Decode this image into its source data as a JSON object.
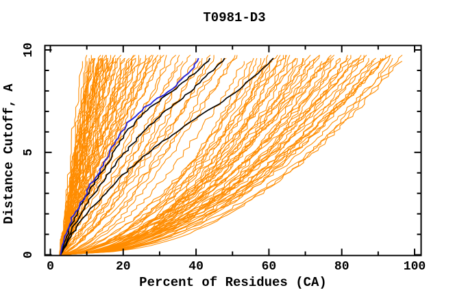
{
  "title": "T0981-D3",
  "chart_data": {
    "type": "line",
    "title": "T0981-D3",
    "xlabel": "Percent of Residues (CA)",
    "ylabel": "Distance Cutoff, A",
    "xlim": [
      0,
      100
    ],
    "ylim": [
      0,
      10
    ],
    "grid": false,
    "legend": "none",
    "x_major_ticks": [
      0,
      20,
      40,
      60,
      80,
      100
    ],
    "x_minor_ticks": [
      10,
      30,
      50,
      70,
      90
    ],
    "x_tick_labels": [
      "0",
      "20",
      "40",
      "60",
      "80",
      "100"
    ],
    "y_major_ticks": [
      0,
      5,
      10
    ],
    "y_minor_ticks": [
      1,
      2,
      3,
      4,
      6,
      7,
      8,
      9
    ],
    "y_tick_labels": [
      "0",
      "5",
      "10"
    ],
    "colors": {
      "models": "#ff8c00",
      "highlight": "#000000",
      "reference": "#2222dd",
      "axis": "#000000"
    },
    "start_percent": 2.8,
    "cutoff_max": 9.7,
    "series": {
      "blue_reference": {
        "color": "#2222dd",
        "points": [
          [
            0,
            2.8
          ],
          [
            0.5,
            3.4
          ],
          [
            1,
            4.2
          ],
          [
            1.5,
            5.2
          ],
          [
            2,
            6.5
          ],
          [
            2.5,
            8.4
          ],
          [
            3,
            9.8
          ],
          [
            3.5,
            11.3
          ],
          [
            4,
            13.3
          ],
          [
            4.5,
            15
          ],
          [
            5,
            16.4
          ],
          [
            5.5,
            17.8
          ],
          [
            6,
            19.5
          ],
          [
            6.5,
            21.5
          ],
          [
            7,
            24.5
          ],
          [
            7.5,
            28.2
          ],
          [
            8,
            32.8
          ],
          [
            8.5,
            35.8
          ],
          [
            9,
            38.6
          ],
          [
            9.7,
            41.3
          ]
        ]
      },
      "black_highlights": [
        {
          "points": [
            [
              0,
              2.8
            ],
            [
              1,
              4.6
            ],
            [
              2,
              7.2
            ],
            [
              3,
              10.4
            ],
            [
              4,
              14
            ],
            [
              5,
              17.5
            ],
            [
              6,
              21
            ],
            [
              7,
              26
            ],
            [
              8,
              33.5
            ],
            [
              9,
              40.5
            ],
            [
              9.7,
              44.5
            ]
          ]
        },
        {
          "points": [
            [
              0,
              2.8
            ],
            [
              1,
              5.2
            ],
            [
              2,
              8.2
            ],
            [
              3,
              12
            ],
            [
              4,
              16
            ],
            [
              5,
              20.5
            ],
            [
              6,
              25.5
            ],
            [
              7,
              31.5
            ],
            [
              8,
              38.5
            ],
            [
              9,
              44.5
            ],
            [
              9.7,
              48.8
            ]
          ]
        },
        {
          "points": [
            [
              0,
              2.8
            ],
            [
              1,
              6
            ],
            [
              2,
              10
            ],
            [
              3,
              15
            ],
            [
              4,
              20.5
            ],
            [
              5,
              27
            ],
            [
              6,
              34.5
            ],
            [
              7,
              43
            ],
            [
              8,
              51.5
            ],
            [
              9,
              57.8
            ],
            [
              9.7,
              61.8
            ]
          ]
        }
      ],
      "orange_models": {
        "color": "#ff8c00",
        "count": 123,
        "curve_params_note": "each entry = [percent_at_cutoff_9.7, shape_exponent_k] for percent(c)=p0+(end-p0)*(c/9.7)^k from common start p0=2.8",
        "curves": [
          [
            8.5,
            1.2
          ],
          [
            9.5,
            1.05
          ],
          [
            10,
            1.25
          ],
          [
            10.4,
            0.95
          ],
          [
            10.8,
            1.15
          ],
          [
            11.1,
            1.0
          ],
          [
            11.4,
            1.22
          ],
          [
            11.7,
            0.92
          ],
          [
            12,
            1.1
          ],
          [
            12.2,
            1.28
          ],
          [
            12.4,
            0.98
          ],
          [
            12.6,
            1.18
          ],
          [
            12.8,
            1.04
          ],
          [
            13,
            1.24
          ],
          [
            13.2,
            0.9
          ],
          [
            13.4,
            1.12
          ],
          [
            13.6,
            1.3
          ],
          [
            13.8,
            0.96
          ],
          [
            14,
            1.2
          ],
          [
            14.2,
            1.06
          ],
          [
            14.5,
            1.26
          ],
          [
            14.8,
            0.93
          ],
          [
            15.1,
            1.14
          ],
          [
            15.4,
            1.02
          ],
          [
            15.7,
            1.22
          ],
          [
            16,
            0.9
          ],
          [
            16.3,
            1.1
          ],
          [
            16.6,
            1.28
          ],
          [
            16.9,
            0.97
          ],
          [
            17.2,
            1.16
          ],
          [
            17.6,
            1.05
          ],
          [
            18,
            1.24
          ],
          [
            18.4,
            0.94
          ],
          [
            18.8,
            1.12
          ],
          [
            19.2,
            1.0
          ],
          [
            19.6,
            1.2
          ],
          [
            20,
            0.91
          ],
          [
            20.5,
            1.08
          ],
          [
            21,
            1.26
          ],
          [
            21.5,
            0.95
          ],
          [
            22,
            1.15
          ],
          [
            22.5,
            1.03
          ],
          [
            23,
            1.22
          ],
          [
            23.5,
            0.92
          ],
          [
            24,
            1.1
          ],
          [
            24.6,
            1.0
          ],
          [
            25.2,
            1.18
          ],
          [
            25.8,
            0.96
          ],
          [
            26.4,
            1.08
          ],
          [
            27,
            1.25
          ],
          [
            27.7,
            0.94
          ],
          [
            28.4,
            1.12
          ],
          [
            29.1,
            1.02
          ],
          [
            29.8,
            1.2
          ],
          [
            30.5,
            0.98
          ],
          [
            31.2,
            1.1
          ],
          [
            32.5,
            0.85
          ],
          [
            33.8,
            1.0
          ],
          [
            35,
            0.7
          ],
          [
            36.5,
            0.9
          ],
          [
            38,
            0.65
          ],
          [
            39.5,
            0.95
          ],
          [
            41,
            0.75
          ],
          [
            42.5,
            0.88
          ],
          [
            44,
            0.62
          ],
          [
            45.5,
            0.8
          ],
          [
            47,
            0.7
          ],
          [
            48.5,
            0.92
          ],
          [
            50,
            0.66
          ],
          [
            52,
            0.78
          ],
          [
            54,
            0.6
          ],
          [
            55,
            0.5
          ],
          [
            56,
            0.42
          ],
          [
            57,
            0.55
          ],
          [
            58,
            0.45
          ],
          [
            59,
            0.6
          ],
          [
            60,
            0.4
          ],
          [
            60.8,
            0.52
          ],
          [
            61.6,
            0.46
          ],
          [
            62.4,
            0.58
          ],
          [
            63.2,
            0.42
          ],
          [
            64,
            0.5
          ],
          [
            64.8,
            0.62
          ],
          [
            65.6,
            0.44
          ],
          [
            66.4,
            0.54
          ],
          [
            67.2,
            0.47
          ],
          [
            68,
            0.6
          ],
          [
            68.8,
            0.41
          ],
          [
            69.6,
            0.52
          ],
          [
            70.4,
            0.45
          ],
          [
            71.2,
            0.57
          ],
          [
            72,
            0.48
          ],
          [
            72.8,
            0.6
          ],
          [
            73.6,
            0.43
          ],
          [
            74.4,
            0.53
          ],
          [
            75.2,
            0.46
          ],
          [
            76,
            0.58
          ],
          [
            76.8,
            0.5
          ],
          [
            77.6,
            0.62
          ],
          [
            78.4,
            0.44
          ],
          [
            79.2,
            0.55
          ],
          [
            80,
            0.47
          ],
          [
            80.8,
            0.59
          ],
          [
            81.6,
            0.42
          ],
          [
            82.4,
            0.52
          ],
          [
            83.2,
            0.46
          ],
          [
            84,
            0.57
          ],
          [
            84.8,
            0.49
          ],
          [
            85.6,
            0.6
          ],
          [
            86.4,
            0.44
          ],
          [
            87.2,
            0.54
          ],
          [
            88,
            0.48
          ],
          [
            88.8,
            0.58
          ],
          [
            89.6,
            0.43
          ],
          [
            90.4,
            0.52
          ],
          [
            91.2,
            0.47
          ],
          [
            92,
            0.56
          ],
          [
            92.8,
            0.5
          ],
          [
            93.6,
            0.6
          ],
          [
            94.4,
            0.45
          ],
          [
            95.2,
            0.53
          ],
          [
            96,
            0.48
          ],
          [
            97,
            0.5
          ]
        ]
      }
    }
  }
}
